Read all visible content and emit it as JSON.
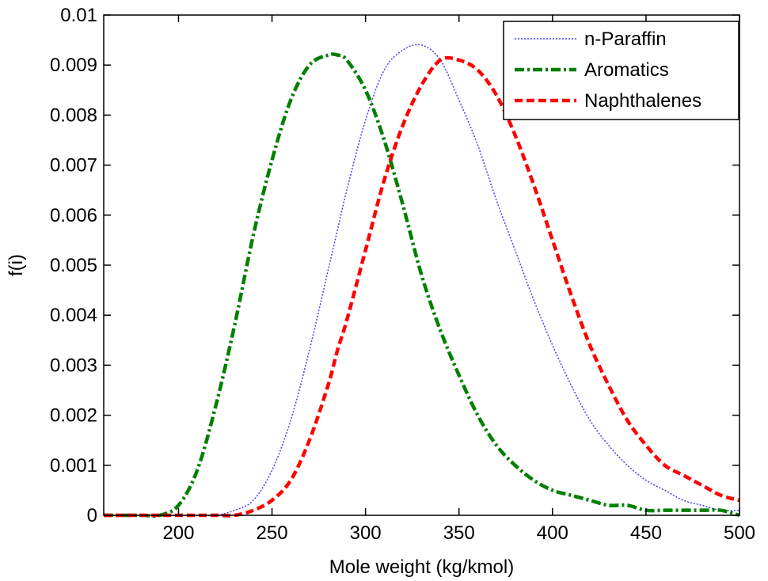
{
  "chart_data": {
    "type": "line",
    "title": "",
    "xlabel": "Mole weight (kg/kmol)",
    "ylabel": "f(i)",
    "xlim": [
      160,
      500
    ],
    "ylim": [
      0,
      0.01
    ],
    "x_ticks": [
      200,
      250,
      300,
      350,
      400,
      450,
      500
    ],
    "y_ticks": [
      0,
      0.001,
      0.002,
      0.003,
      0.004,
      0.005,
      0.006,
      0.007,
      0.008,
      0.009,
      0.01
    ],
    "x_tick_labels": [
      "200",
      "250",
      "300",
      "350",
      "400",
      "450",
      "500"
    ],
    "y_tick_labels": [
      "0",
      "0.001",
      "0.002",
      "0.003",
      "0.004",
      "0.005",
      "0.006",
      "0.007",
      "0.008",
      "0.009",
      "0.01"
    ],
    "grid": false,
    "legend_position": "top-right",
    "x": [
      160,
      180,
      190,
      200,
      210,
      220,
      230,
      240,
      250,
      260,
      270,
      280,
      285,
      290,
      300,
      310,
      320,
      330,
      340,
      350,
      360,
      370,
      380,
      390,
      400,
      410,
      420,
      430,
      440,
      450,
      460,
      470,
      480,
      490,
      500
    ],
    "series": [
      {
        "name": "n-Paraffin",
        "color": "#4040ff",
        "style": "dotted",
        "values": [
          0,
          0,
          0,
          0,
          0,
          0,
          0.0001,
          0.0003,
          0.0009,
          0.0019,
          0.0033,
          0.0049,
          0.0057,
          0.0065,
          0.0079,
          0.0089,
          0.0093,
          0.0094,
          0.0091,
          0.0083,
          0.0074,
          0.0063,
          0.0053,
          0.0043,
          0.0034,
          0.0026,
          0.0019,
          0.0014,
          0.001,
          0.0007,
          0.0005,
          0.0003,
          0.0002,
          0.0001,
          0.0001
        ]
      },
      {
        "name": "Aromatics",
        "color": "#007f00",
        "style": "dash-dot",
        "values": [
          0,
          0,
          0,
          0.0002,
          0.0009,
          0.0022,
          0.0038,
          0.0056,
          0.0071,
          0.0083,
          0.009,
          0.0092,
          0.0092,
          0.0091,
          0.0085,
          0.0075,
          0.0062,
          0.0048,
          0.0037,
          0.0028,
          0.002,
          0.0014,
          0.001,
          0.0007,
          0.0005,
          0.0004,
          0.0003,
          0.0002,
          0.0002,
          0.0001,
          0.0001,
          0.0001,
          0.0001,
          0.0001,
          0
        ]
      },
      {
        "name": "Naphthalenes",
        "color": "#ff0000",
        "style": "dashed",
        "values": [
          0,
          0,
          0,
          0,
          0,
          0,
          0,
          0.0001,
          0.0003,
          0.0007,
          0.0015,
          0.0026,
          0.0033,
          0.0039,
          0.0053,
          0.0067,
          0.0078,
          0.0086,
          0.0091,
          0.0091,
          0.0089,
          0.0084,
          0.0076,
          0.0066,
          0.0055,
          0.0044,
          0.0034,
          0.0026,
          0.0019,
          0.0014,
          0.001,
          0.0008,
          0.0006,
          0.0004,
          0.0003
        ]
      }
    ]
  }
}
